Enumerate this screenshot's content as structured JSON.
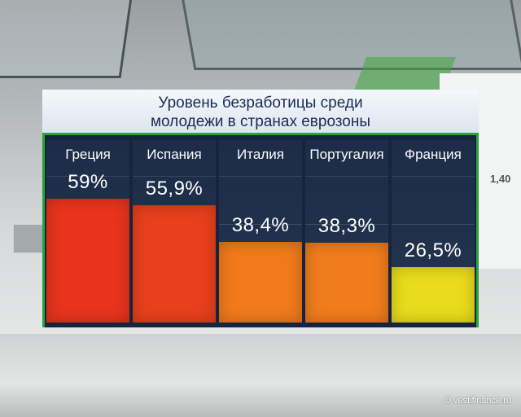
{
  "title_lines": [
    "Уровень безработицы среди",
    "молодежи в странах еврозоны"
  ],
  "chart_data": {
    "type": "bar",
    "title": "Уровень безработицы среди молодежи в странах еврозоны",
    "categories": [
      "Греция",
      "Испания",
      "Италия",
      "Португалия",
      "Франция"
    ],
    "values": [
      59,
      55.9,
      38.4,
      38.3,
      26.5
    ],
    "value_labels": [
      "59%",
      "55,9%",
      "38,4%",
      "38,3%",
      "26,5%"
    ],
    "colors": [
      "#e8341c",
      "#e8401c",
      "#f07a1c",
      "#f07c1c",
      "#e8dc1c"
    ],
    "ylim": [
      0,
      70
    ]
  },
  "background_text": {
    "number": "1,40"
  },
  "watermark": "© vestifinance.ru"
}
